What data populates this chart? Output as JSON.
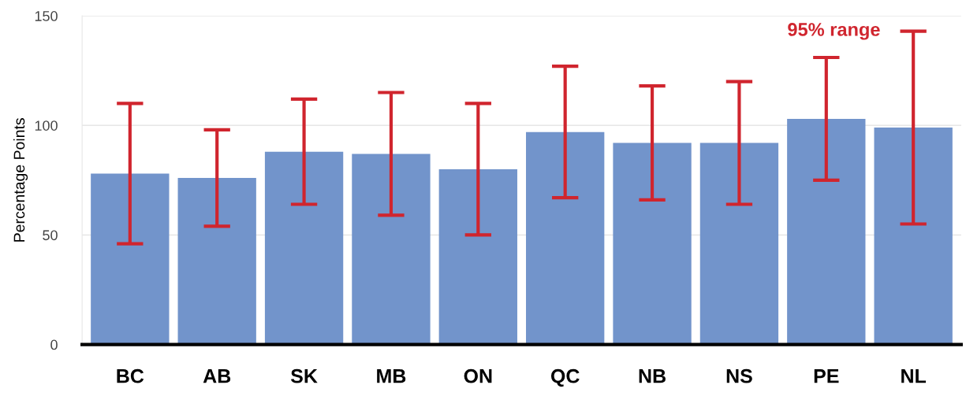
{
  "chart_data": {
    "type": "bar",
    "ylabel": "Percentage Points",
    "categories": [
      "BC",
      "AB",
      "SK",
      "MB",
      "ON",
      "QC",
      "NB",
      "NS",
      "PE",
      "NL"
    ],
    "series": [
      {
        "color": "#7294cb",
        "values": [
          78,
          76,
          88,
          87,
          80,
          97,
          92,
          92,
          103,
          99
        ],
        "errors": [
          [
            46,
            110
          ],
          [
            54,
            98
          ],
          [
            64,
            112
          ],
          [
            59,
            115
          ],
          [
            50,
            110
          ],
          [
            67,
            127
          ],
          [
            66,
            118
          ],
          [
            64,
            120
          ],
          [
            75,
            131
          ],
          [
            55,
            143
          ]
        ]
      }
    ],
    "annotations": [
      {
        "text": "95% range",
        "x": "NL",
        "y": 143
      }
    ],
    "ylim": [
      0,
      150
    ],
    "yticks": [
      0,
      50,
      100,
      150
    ],
    "grid": "y"
  }
}
